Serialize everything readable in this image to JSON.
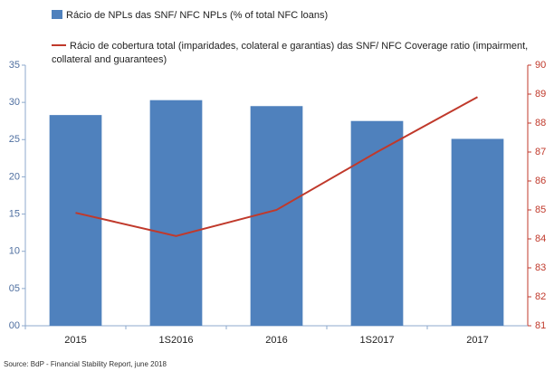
{
  "chart_data": {
    "type": "bar_line",
    "categories": [
      "2015",
      "1S2016",
      "2016",
      "1S2017",
      "2017"
    ],
    "series": [
      {
        "name": "Rácio de NPLs das SNF/ NFC NPLs (% of total NFC loans)",
        "type": "bar",
        "color": "#4f81bd",
        "values": [
          28.3,
          30.3,
          29.5,
          27.5,
          25.1
        ]
      },
      {
        "name": "Rácio de cobertura total (imparidades, colateral e garantias) das SNF/ NFC Coverage ratio  (impairment, collateral and guarantees)",
        "type": "line",
        "color": "#c0392b",
        "axis": "y2",
        "values": [
          84.9,
          84.1,
          85.0,
          87.0,
          88.9
        ]
      }
    ],
    "ylim": [
      0,
      35
    ],
    "yticks": [
      {
        "value": 0,
        "label": "00"
      },
      {
        "value": 5,
        "label": "05"
      },
      10,
      15,
      20,
      25,
      30,
      35
    ],
    "y2lim": [
      81,
      90
    ],
    "y2ticks": [
      81,
      82,
      83,
      84,
      85,
      86,
      87,
      88,
      89,
      90
    ],
    "source": "Source: BdP - Financial Stability Report, june 2018"
  }
}
